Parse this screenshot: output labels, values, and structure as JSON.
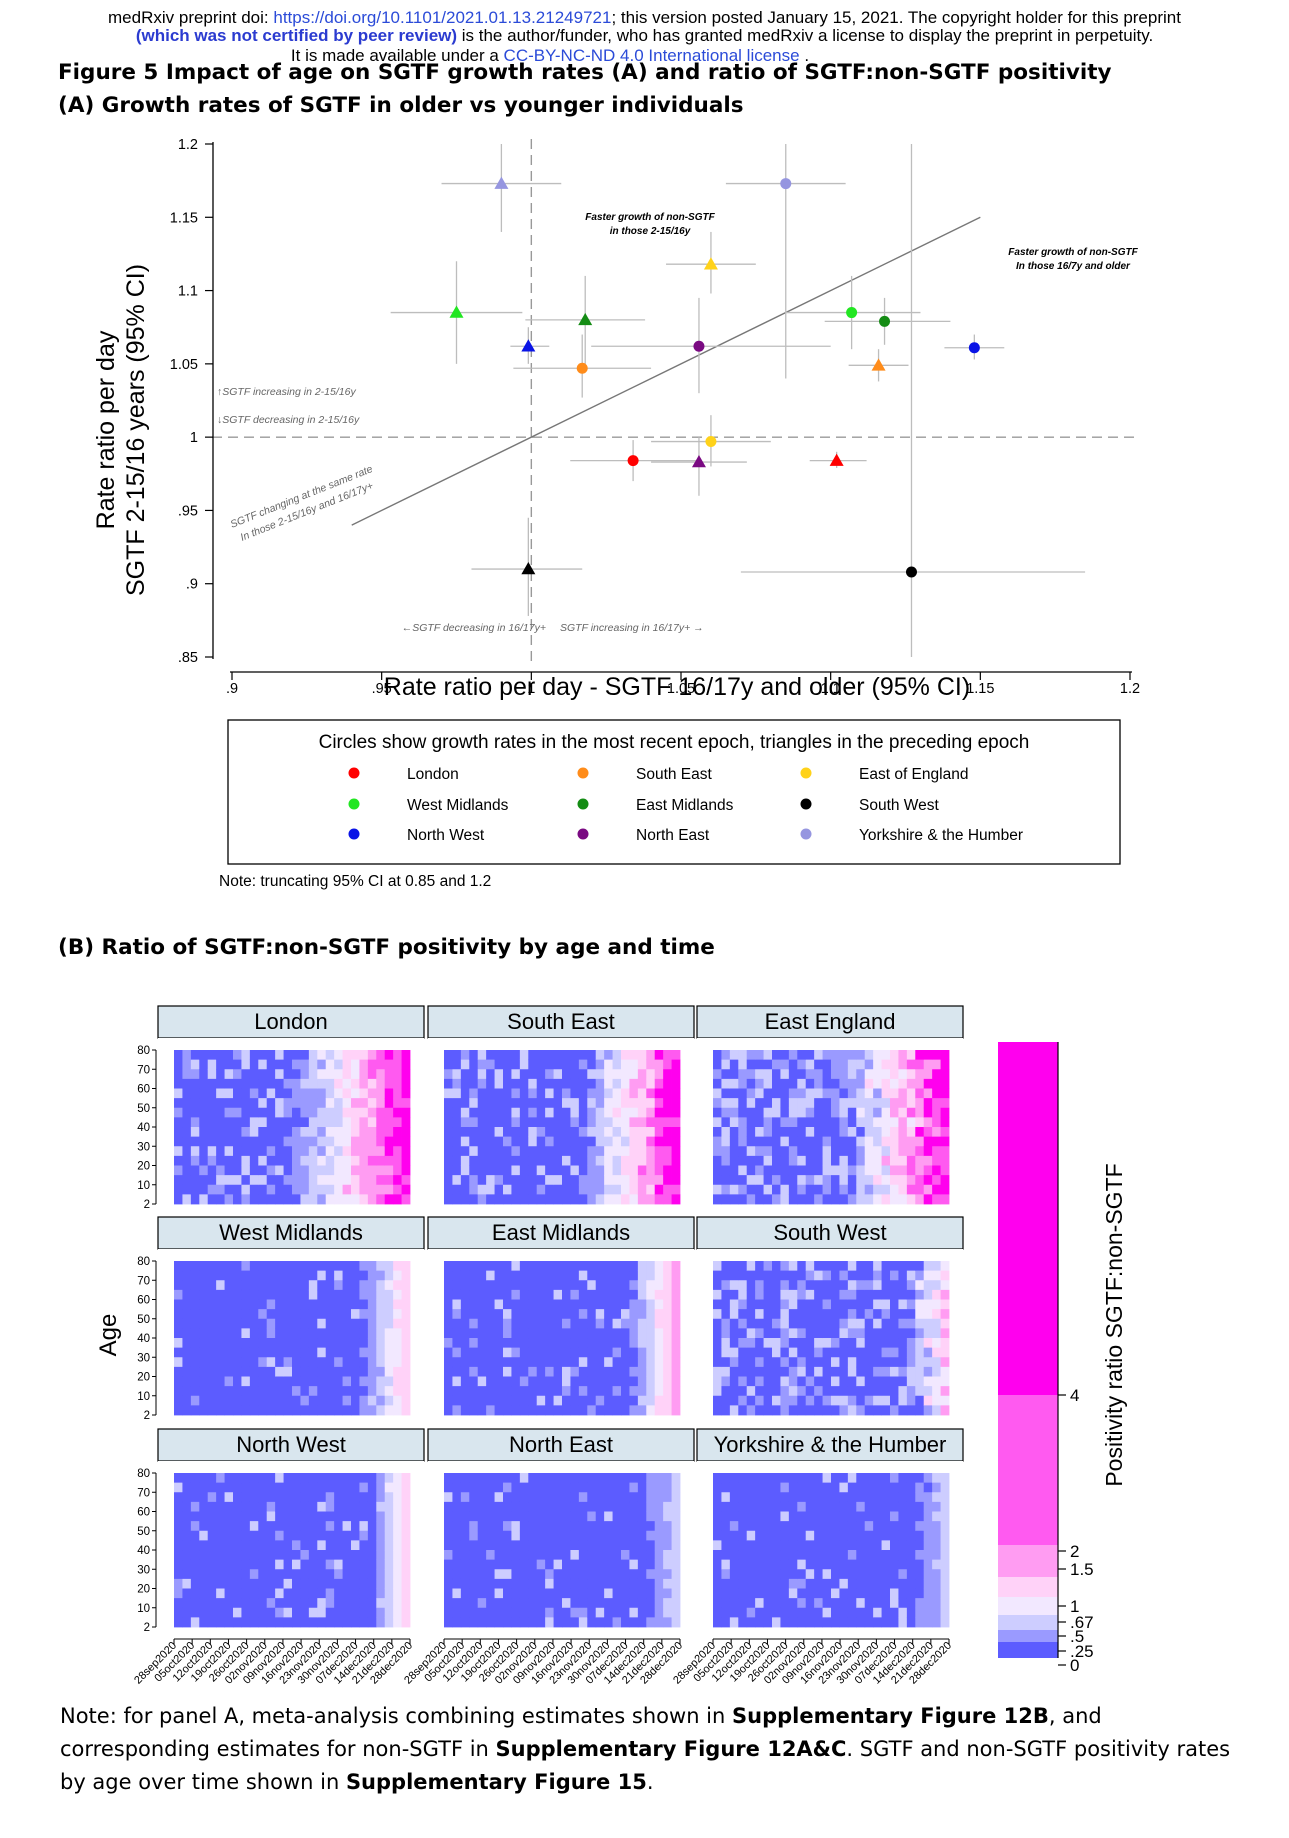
{
  "header": {
    "line1_prefix": "medRxiv preprint doi: ",
    "line1_doi": "https://doi.org/10.1101/2021.01.13.21249721",
    "line1_suffix": "; this version posted January 15, 2021. The copyright holder for this preprint",
    "line2_bold": "(which was not certified by peer review)",
    "line2_rest": " is the author/funder, who has granted medRxiv a license to display the preprint in perpetuity.",
    "line3_prefix": "It is made available under a ",
    "line3_license": "CC-BY-NC-ND 4.0 International license",
    "line3_suffix": " ."
  },
  "figure": {
    "title": "Figure 5 Impact of age on SGTF growth rates (A) and ratio of SGTF:non-SGTF positivity",
    "panel_a_title": "(A) Growth rates of SGTF in older vs younger individuals",
    "panel_b_title": "(B) Ratio of SGTF:non-SGTF positivity by age and time"
  },
  "chart_data": [
    {
      "type": "scatter",
      "title": "Growth rates of SGTF in older vs younger individuals",
      "xlabel": "Rate ratio per day - SGTF 16/17y and older (95% CI)",
      "ylabel_line1": "Rate ratio per day",
      "ylabel_line2": "SGTF 2-15/16 years (95% CI)",
      "xlim": [
        0.9,
        1.2
      ],
      "ylim": [
        0.85,
        1.2
      ],
      "xticks": [
        0.9,
        0.95,
        1,
        1.05,
        1.1,
        1.15,
        1.2
      ],
      "xtick_labels": [
        ".9",
        ".95",
        "1",
        "1.05",
        "1.1",
        "1.15",
        "1.2"
      ],
      "yticks": [
        0.85,
        0.9,
        0.95,
        1,
        1.05,
        1.1,
        1.15,
        1.2
      ],
      "ytick_labels": [
        ".85",
        ".9",
        ".95",
        "1",
        "1.05",
        "1.1",
        "1.15",
        "1.2"
      ],
      "reference_line": "y = x",
      "annotations": {
        "faster_non_sgtf_young_l1": "Faster growth of non-SGTF",
        "faster_non_sgtf_young_l2": "in those 2-15/16y",
        "faster_non_sgtf_old_l1": "Faster growth of non-SGTF",
        "faster_non_sgtf_old_l2": "In those 16/7y and older",
        "increasing_young": "↑SGTF increasing in 2-15/16y",
        "decreasing_young": "↓SGTF decreasing in 2-15/16y",
        "same_rate_l1": "SGTF changing at the same rate",
        "same_rate_l2": "In those 2-15/16y and 16/17y+",
        "decreasing_old": "←SGTF decreasing in 16/17y+",
        "increasing_old": "SGTF increasing in 16/17y+ →"
      },
      "legend_title": "Circles show growth rates in the most recent epoch, triangles in the preceding epoch",
      "legend": [
        {
          "name": "London",
          "color": "#ff0000"
        },
        {
          "name": "South East",
          "color": "#ff8c1a"
        },
        {
          "name": "East of England",
          "color": "#ffd21a"
        },
        {
          "name": "West Midlands",
          "color": "#22e622"
        },
        {
          "name": "East Midlands",
          "color": "#148c14"
        },
        {
          "name": "South West",
          "color": "#000000"
        },
        {
          "name": "North West",
          "color": "#0a14e6"
        },
        {
          "name": "North East",
          "color": "#7a0a82"
        },
        {
          "name": "Yorkshire & the Humber",
          "color": "#9696e0"
        }
      ],
      "note": "Note: truncating 95% CI at 0.85 and 1.2",
      "points": [
        {
          "region": "London",
          "epoch": "recent",
          "shape": "circle",
          "x": 1.034,
          "y": 0.984,
          "xlo": 1.013,
          "xhi": 1.055,
          "ylo": 0.97,
          "yhi": 0.998
        },
        {
          "region": "London",
          "epoch": "preceding",
          "shape": "triangle",
          "x": 1.102,
          "y": 0.984,
          "xlo": 1.093,
          "xhi": 1.112,
          "ylo": 0.979,
          "yhi": 0.99
        },
        {
          "region": "South East",
          "epoch": "recent",
          "shape": "circle",
          "x": 1.017,
          "y": 1.047,
          "xlo": 0.994,
          "xhi": 1.04,
          "ylo": 1.027,
          "yhi": 1.07
        },
        {
          "region": "South East",
          "epoch": "preceding",
          "shape": "triangle",
          "x": 1.116,
          "y": 1.049,
          "xlo": 1.106,
          "xhi": 1.126,
          "ylo": 1.038,
          "yhi": 1.06
        },
        {
          "region": "East of England",
          "epoch": "recent",
          "shape": "circle",
          "x": 1.06,
          "y": 0.997,
          "xlo": 1.04,
          "xhi": 1.08,
          "ylo": 0.98,
          "yhi": 1.015
        },
        {
          "region": "East of England",
          "epoch": "preceding",
          "shape": "triangle",
          "x": 1.06,
          "y": 1.118,
          "xlo": 1.045,
          "xhi": 1.075,
          "ylo": 1.098,
          "yhi": 1.14
        },
        {
          "region": "West Midlands",
          "epoch": "recent",
          "shape": "circle",
          "x": 1.107,
          "y": 1.085,
          "xlo": 1.085,
          "xhi": 1.13,
          "ylo": 1.06,
          "yhi": 1.11
        },
        {
          "region": "West Midlands",
          "epoch": "preceding",
          "shape": "triangle",
          "x": 0.975,
          "y": 1.085,
          "xlo": 0.953,
          "xhi": 0.997,
          "ylo": 1.05,
          "yhi": 1.12
        },
        {
          "region": "East Midlands",
          "epoch": "recent",
          "shape": "circle",
          "x": 1.118,
          "y": 1.079,
          "xlo": 1.098,
          "xhi": 1.14,
          "ylo": 1.063,
          "yhi": 1.095
        },
        {
          "region": "East Midlands",
          "epoch": "preceding",
          "shape": "triangle",
          "x": 1.018,
          "y": 1.08,
          "xlo": 0.998,
          "xhi": 1.038,
          "ylo": 1.05,
          "yhi": 1.11
        },
        {
          "region": "South West",
          "epoch": "recent",
          "shape": "circle",
          "x": 1.127,
          "y": 0.908,
          "xlo": 1.07,
          "xhi": 1.185,
          "ylo": 0.85,
          "yhi": 1.2
        },
        {
          "region": "South West",
          "epoch": "preceding",
          "shape": "triangle",
          "x": 0.999,
          "y": 0.91,
          "xlo": 0.98,
          "xhi": 1.017,
          "ylo": 0.878,
          "yhi": 0.945
        },
        {
          "region": "North West",
          "epoch": "recent",
          "shape": "circle",
          "x": 1.148,
          "y": 1.061,
          "xlo": 1.138,
          "xhi": 1.158,
          "ylo": 1.053,
          "yhi": 1.07
        },
        {
          "region": "North West",
          "epoch": "preceding",
          "shape": "triangle",
          "x": 0.999,
          "y": 1.062,
          "xlo": 0.993,
          "xhi": 1.006,
          "ylo": 1.05,
          "yhi": 1.075
        },
        {
          "region": "North East",
          "epoch": "recent",
          "shape": "circle",
          "x": 1.056,
          "y": 1.062,
          "xlo": 1.02,
          "xhi": 1.1,
          "ylo": 1.03,
          "yhi": 1.095
        },
        {
          "region": "North East",
          "epoch": "preceding",
          "shape": "triangle",
          "x": 1.056,
          "y": 0.983,
          "xlo": 1.04,
          "xhi": 1.072,
          "ylo": 0.96,
          "yhi": 1.0
        },
        {
          "region": "Yorkshire & the Humber",
          "epoch": "recent",
          "shape": "circle",
          "x": 1.085,
          "y": 1.173,
          "xlo": 1.065,
          "xhi": 1.105,
          "ylo": 1.04,
          "yhi": 1.2
        },
        {
          "region": "Yorkshire & the Humber",
          "epoch": "preceding",
          "shape": "triangle",
          "x": 0.99,
          "y": 1.173,
          "xlo": 0.97,
          "xhi": 1.01,
          "ylo": 1.14,
          "yhi": 1.2
        }
      ]
    },
    {
      "type": "heatmap",
      "title": "Ratio of SGTF:non-SGTF positivity by age and time",
      "xlabel": "",
      "ylabel": "Age",
      "yticks": [
        "80",
        "70",
        "60",
        "50",
        "40",
        "30",
        "20",
        "10",
        "2"
      ],
      "xticks": [
        "28sep2020",
        "05oct2020",
        "12oct2020",
        "19oct2020",
        "26oct2020",
        "02nov2020",
        "09nov2020",
        "16nov2020",
        "23nov2020",
        "30nov2020",
        "07dec2020",
        "14dec2020",
        "21dec2020",
        "28dec2020"
      ],
      "panels": [
        "London",
        "South East",
        "East England",
        "West Midlands",
        "East Midlands",
        "South West",
        "North West",
        "North East",
        "Yorkshire & the Humber"
      ],
      "colorbar_label": "Positivity ratio SGTF:non-SGTF",
      "colorbar_levels": [
        "0",
        ".25",
        ".5",
        ".67",
        "1",
        "1.5",
        "2",
        "4"
      ],
      "colorbar_colors": [
        "#5c5cff",
        "#9a9aff",
        "#cdcdff",
        "#f2e8ff",
        "#ffd2f8",
        "#ff9cf2",
        "#ff5af0",
        "#ff00ee"
      ]
    }
  ],
  "footnote": {
    "p1": "Note: for panel A, meta-analysis combining estimates shown in ",
    "b1": "Supplementary Figure 12B",
    "p2": ", and corresponding estimates for non-SGTF in ",
    "b2": "Supplementary Figure 12A&C",
    "p3": ". SGTF and non-SGTF positivity rates by age over time shown in ",
    "b3": "Supplementary Figure 15",
    "p4": "."
  }
}
